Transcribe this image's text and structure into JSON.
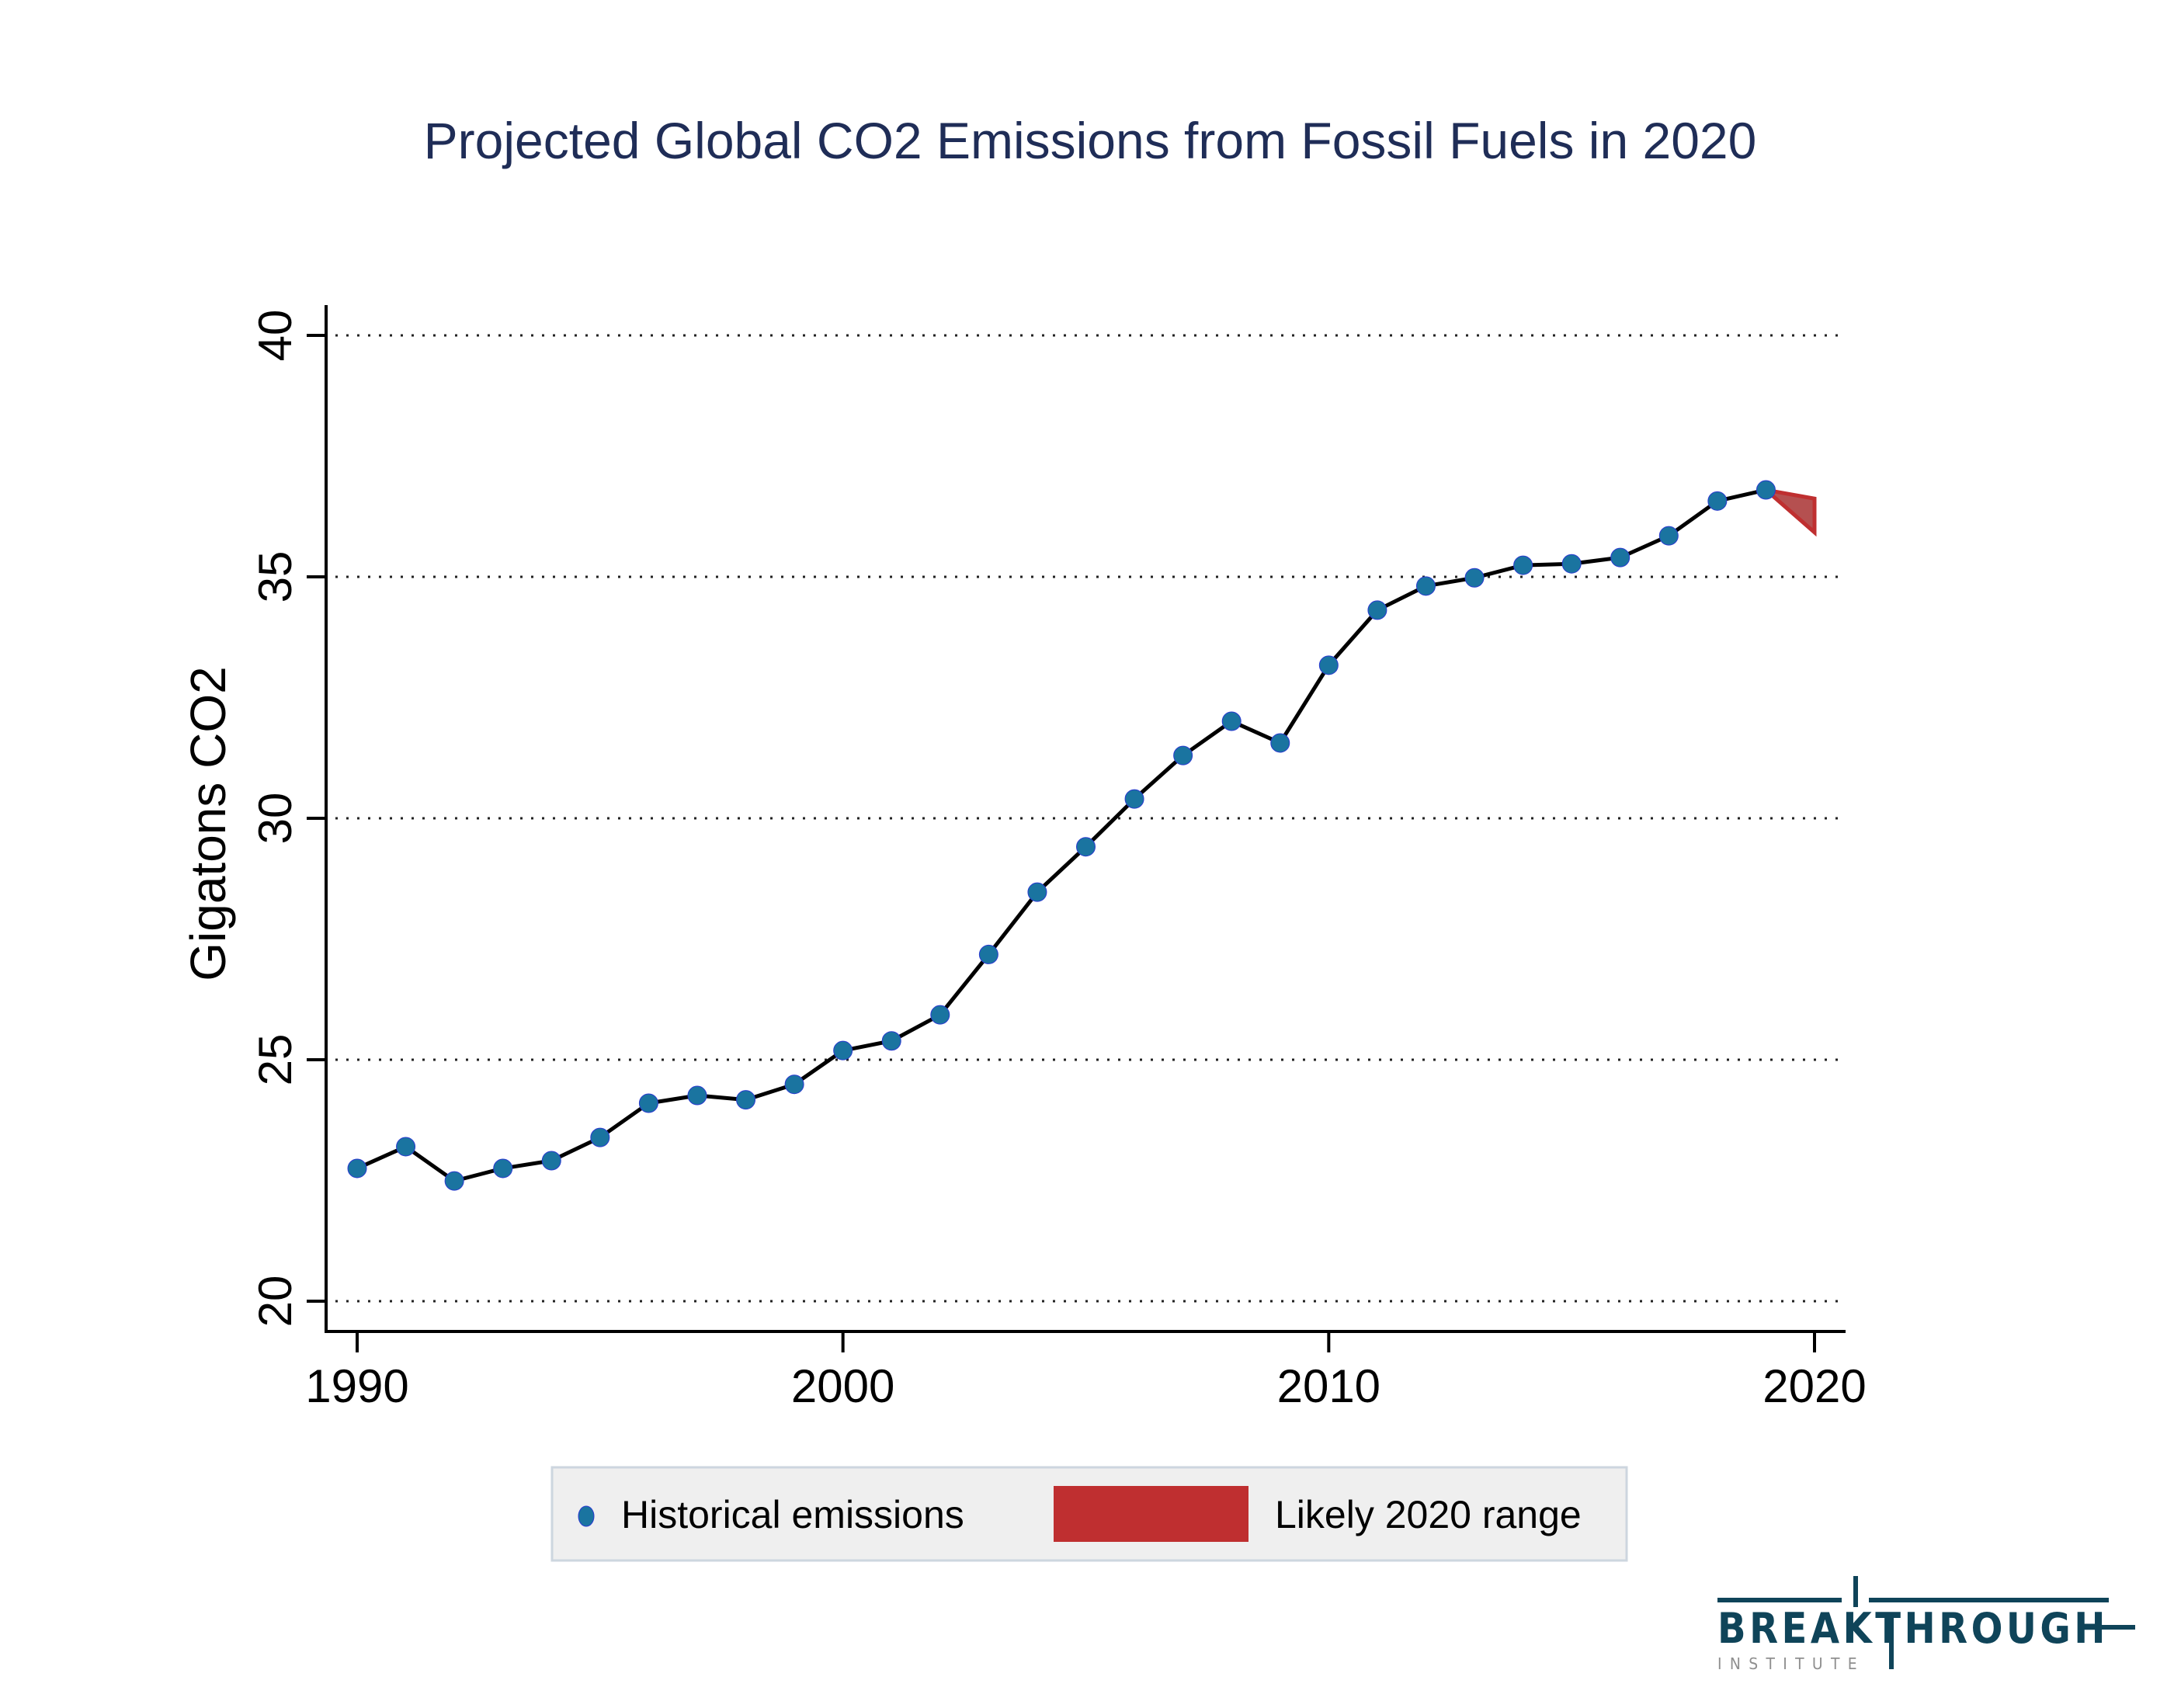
{
  "chart_data": {
    "type": "line",
    "title": "Projected Global CO2 Emissions from Fossil Fuels in 2020",
    "xlabel": "",
    "ylabel": "Gigatons CO2",
    "xlim": [
      1990,
      2020
    ],
    "ylim": [
      20,
      40
    ],
    "xticks": [
      1990,
      2000,
      2010,
      2020
    ],
    "yticks": [
      20,
      25,
      30,
      35,
      40
    ],
    "grid": "horizontal-dotted",
    "series": [
      {
        "name": "Historical emissions",
        "type": "line-with-markers",
        "color": "#1a74a0",
        "x": [
          1990,
          1991,
          1992,
          1993,
          1994,
          1995,
          1996,
          1997,
          1998,
          1999,
          2000,
          2001,
          2002,
          2003,
          2004,
          2005,
          2006,
          2007,
          2008,
          2009,
          2010,
          2011,
          2012,
          2013,
          2014,
          2015,
          2016,
          2017,
          2018,
          2019
        ],
        "values": [
          22.75,
          23.2,
          22.49,
          22.75,
          22.91,
          23.39,
          24.1,
          24.26,
          24.17,
          24.49,
          25.19,
          25.39,
          25.93,
          27.18,
          28.47,
          29.41,
          30.4,
          31.3,
          32.01,
          31.56,
          33.17,
          34.31,
          34.81,
          34.98,
          35.24,
          35.27,
          35.4,
          35.85,
          36.57,
          36.8
        ]
      },
      {
        "name": "Likely 2020 range",
        "type": "range-area",
        "color": "#bf2f30",
        "x": [
          2019,
          2020
        ],
        "low": [
          36.8,
          35.92
        ],
        "high": [
          36.8,
          36.62
        ]
      }
    ],
    "legend": {
      "position": "bottom-center",
      "entries": [
        "Historical emissions",
        "Likely 2020 range"
      ]
    }
  },
  "logo": {
    "main": "BREAKTHROUGH",
    "sub": "INSTITUTE"
  }
}
